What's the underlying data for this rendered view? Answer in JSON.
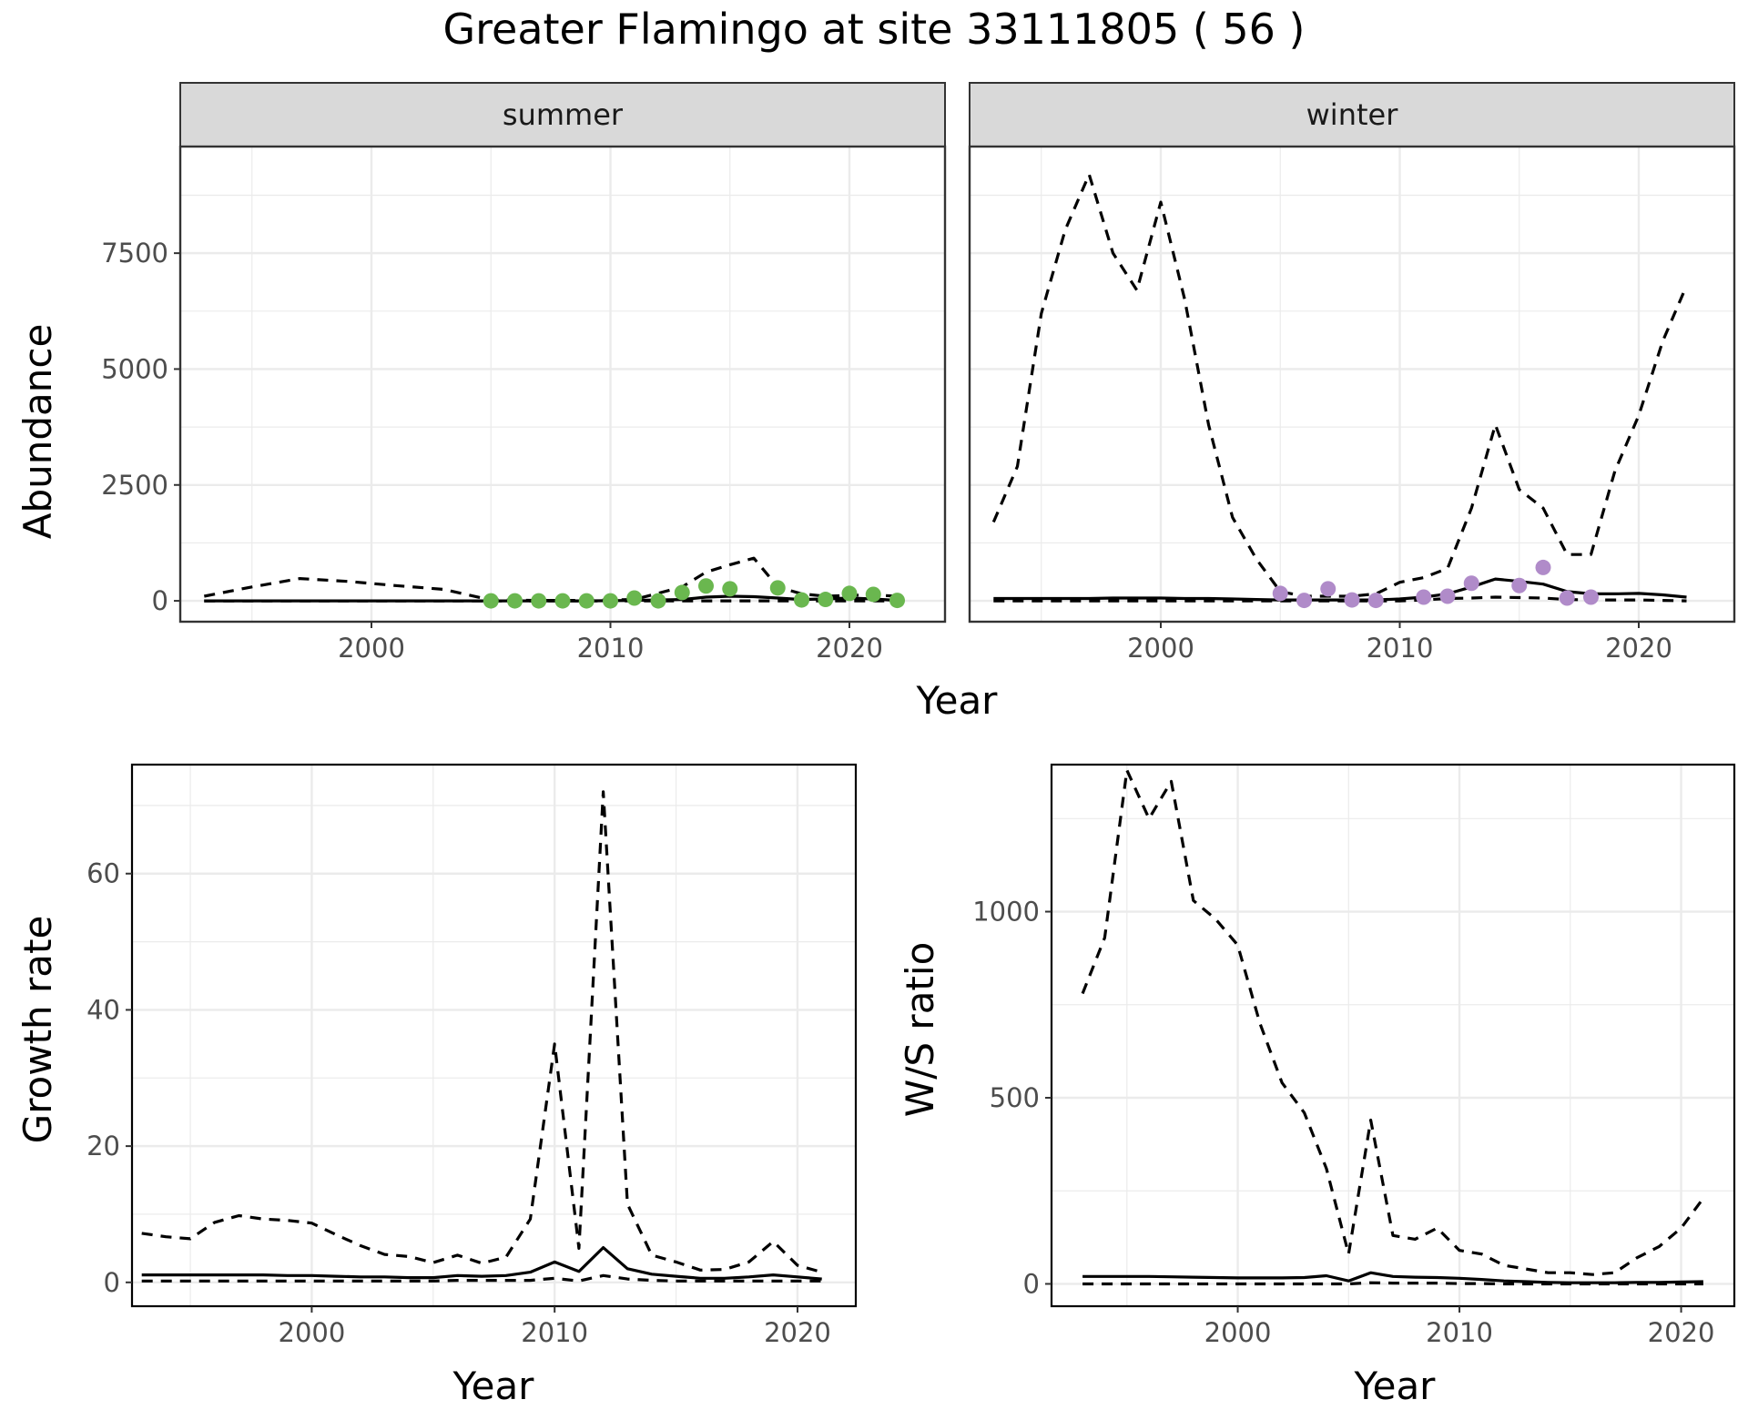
{
  "figure": {
    "title": "Greater Flamingo at site 33111805 ( 56 )"
  },
  "colors": {
    "summer_points": "#6ab74f",
    "winter_points": "#b08bc9",
    "line": "#000000",
    "grid": "#ebebeb",
    "strip_fill": "#d9d9d9",
    "panel_border": "#333333"
  },
  "chart_data": [
    {
      "id": "abundance",
      "type": "line",
      "facets": [
        "summer",
        "winter"
      ],
      "xlabel": "Year",
      "ylabel": "Abundance",
      "xlim": [
        1992,
        2024
      ],
      "ylim": [
        -450,
        9800
      ],
      "xticks": [
        2000,
        2010,
        2020
      ],
      "yticks": [
        0,
        2500,
        5000,
        7500
      ],
      "panels": [
        {
          "facet": "summer",
          "x": [
            1993,
            1995,
            1997,
            1999,
            2001,
            2003,
            2005,
            2007,
            2009,
            2011,
            2013,
            2014,
            2015,
            2016,
            2017,
            2018,
            2019,
            2020,
            2021,
            2022
          ],
          "upper": [
            100,
            300,
            480,
            420,
            330,
            250,
            20,
            10,
            10,
            30,
            300,
            620,
            780,
            920,
            300,
            150,
            100,
            120,
            130,
            100
          ],
          "estimate": [
            0,
            0,
            0,
            0,
            0,
            0,
            0,
            0,
            0,
            10,
            30,
            80,
            100,
            90,
            60,
            30,
            40,
            60,
            40,
            10
          ],
          "lower": [
            0,
            0,
            0,
            0,
            0,
            0,
            0,
            0,
            0,
            0,
            0,
            0,
            0,
            0,
            0,
            0,
            0,
            0,
            0,
            0
          ],
          "points": {
            "x": [
              2005,
              2006,
              2007,
              2008,
              2009,
              2010,
              2011,
              2012,
              2013,
              2014,
              2015,
              2017,
              2018,
              2019,
              2020,
              2021,
              2022
            ],
            "y": [
              0,
              0,
              0,
              0,
              0,
              0,
              60,
              0,
              180,
              320,
              260,
              280,
              20,
              30,
              160,
              140,
              10
            ]
          }
        },
        {
          "facet": "winter",
          "x": [
            1993,
            1994,
            1995,
            1996,
            1997,
            1998,
            1999,
            2000,
            2001,
            2002,
            2003,
            2004,
            2005,
            2006,
            2007,
            2008,
            2009,
            2010,
            2011,
            2012,
            2013,
            2014,
            2015,
            2016,
            2017,
            2018,
            2019,
            2020,
            2021,
            2022
          ],
          "upper": [
            1700,
            2900,
            6200,
            8000,
            9200,
            7500,
            6700,
            8600,
            6500,
            3800,
            1800,
            900,
            200,
            100,
            100,
            100,
            150,
            400,
            500,
            700,
            2000,
            3800,
            2400,
            2000,
            1000,
            1000,
            2800,
            4000,
            5600,
            6800
          ],
          "estimate": [
            50,
            50,
            50,
            50,
            50,
            60,
            60,
            60,
            50,
            50,
            40,
            30,
            20,
            20,
            20,
            20,
            20,
            40,
            80,
            150,
            300,
            470,
            420,
            360,
            200,
            150,
            150,
            160,
            130,
            80
          ],
          "lower": [
            0,
            0,
            0,
            0,
            0,
            0,
            0,
            0,
            0,
            0,
            0,
            0,
            0,
            0,
            0,
            0,
            0,
            0,
            20,
            50,
            60,
            80,
            70,
            60,
            30,
            20,
            20,
            20,
            10,
            0
          ],
          "points": {
            "x": [
              2005,
              2006,
              2007,
              2008,
              2009,
              2011,
              2012,
              2013,
              2015,
              2016,
              2017,
              2018
            ],
            "y": [
              160,
              10,
              260,
              20,
              10,
              80,
              100,
              380,
              330,
              720,
              60,
              80
            ]
          }
        }
      ]
    },
    {
      "id": "growth",
      "type": "line",
      "xlabel": "Year",
      "ylabel": "Growth rate",
      "xlim": [
        1992.6,
        2022.4
      ],
      "ylim": [
        -3.5,
        76
      ],
      "xticks": [
        2000,
        2010,
        2020
      ],
      "yticks": [
        0,
        20,
        40,
        60
      ],
      "x": [
        1993,
        1994,
        1995,
        1996,
        1997,
        1998,
        1999,
        2000,
        2001,
        2002,
        2003,
        2004,
        2005,
        2006,
        2007,
        2008,
        2009,
        2010,
        2011,
        2012,
        2013,
        2014,
        2015,
        2016,
        2017,
        2018,
        2019,
        2020,
        2021
      ],
      "upper": [
        7.2,
        6.7,
        6.4,
        8.8,
        9.8,
        9.3,
        9.1,
        8.7,
        7.0,
        5.4,
        4.1,
        3.8,
        2.9,
        4.0,
        2.8,
        3.7,
        9.3,
        35.0,
        5.0,
        72.0,
        11.5,
        4.0,
        3.0,
        1.8,
        1.9,
        3.0,
        6.0,
        2.5,
        1.5
      ],
      "estimate": [
        1.1,
        1.1,
        1.1,
        1.1,
        1.1,
        1.1,
        1.0,
        1.0,
        0.9,
        0.8,
        0.8,
        0.7,
        0.7,
        1.0,
        0.9,
        1.0,
        1.5,
        3.0,
        1.6,
        5.1,
        2.0,
        1.2,
        0.9,
        0.6,
        0.6,
        0.8,
        1.1,
        0.8,
        0.5
      ],
      "lower": [
        0.2,
        0.2,
        0.2,
        0.2,
        0.2,
        0.2,
        0.2,
        0.2,
        0.2,
        0.2,
        0.2,
        0.2,
        0.2,
        0.3,
        0.3,
        0.3,
        0.3,
        0.6,
        0.2,
        1.0,
        0.5,
        0.3,
        0.2,
        0.2,
        0.2,
        0.2,
        0.2,
        0.2,
        0.2
      ]
    },
    {
      "id": "ws_ratio",
      "type": "line",
      "xlabel": "Year",
      "ylabel": "W/S ratio",
      "xlim": [
        1991.6,
        2022.4
      ],
      "ylim": [
        -60,
        1395
      ],
      "xticks": [
        2000,
        2010,
        2020
      ],
      "yticks": [
        0,
        500,
        1000
      ],
      "x": [
        1993,
        1994,
        1995,
        1996,
        1997,
        1998,
        1999,
        2000,
        2001,
        2002,
        2003,
        2004,
        2005,
        2006,
        2007,
        2008,
        2009,
        2010,
        2011,
        2012,
        2013,
        2014,
        2015,
        2016,
        2017,
        2018,
        2019,
        2020,
        2021
      ],
      "upper": [
        780,
        930,
        1380,
        1250,
        1350,
        1030,
        980,
        910,
        700,
        540,
        460,
        310,
        80,
        440,
        130,
        120,
        150,
        90,
        80,
        50,
        40,
        30,
        30,
        25,
        30,
        70,
        100,
        150,
        230
      ],
      "estimate": [
        20,
        20,
        20,
        20,
        19,
        18,
        17,
        16,
        16,
        16,
        17,
        22,
        8,
        30,
        20,
        18,
        17,
        15,
        12,
        8,
        6,
        4,
        3,
        3,
        3,
        4,
        4,
        5,
        6
      ],
      "lower": [
        0,
        0,
        0,
        0,
        0,
        0,
        0,
        0,
        0,
        0,
        0,
        0,
        0,
        3,
        2,
        2,
        2,
        1,
        1,
        0,
        0,
        0,
        0,
        0,
        0,
        0,
        0,
        0,
        0
      ]
    }
  ]
}
